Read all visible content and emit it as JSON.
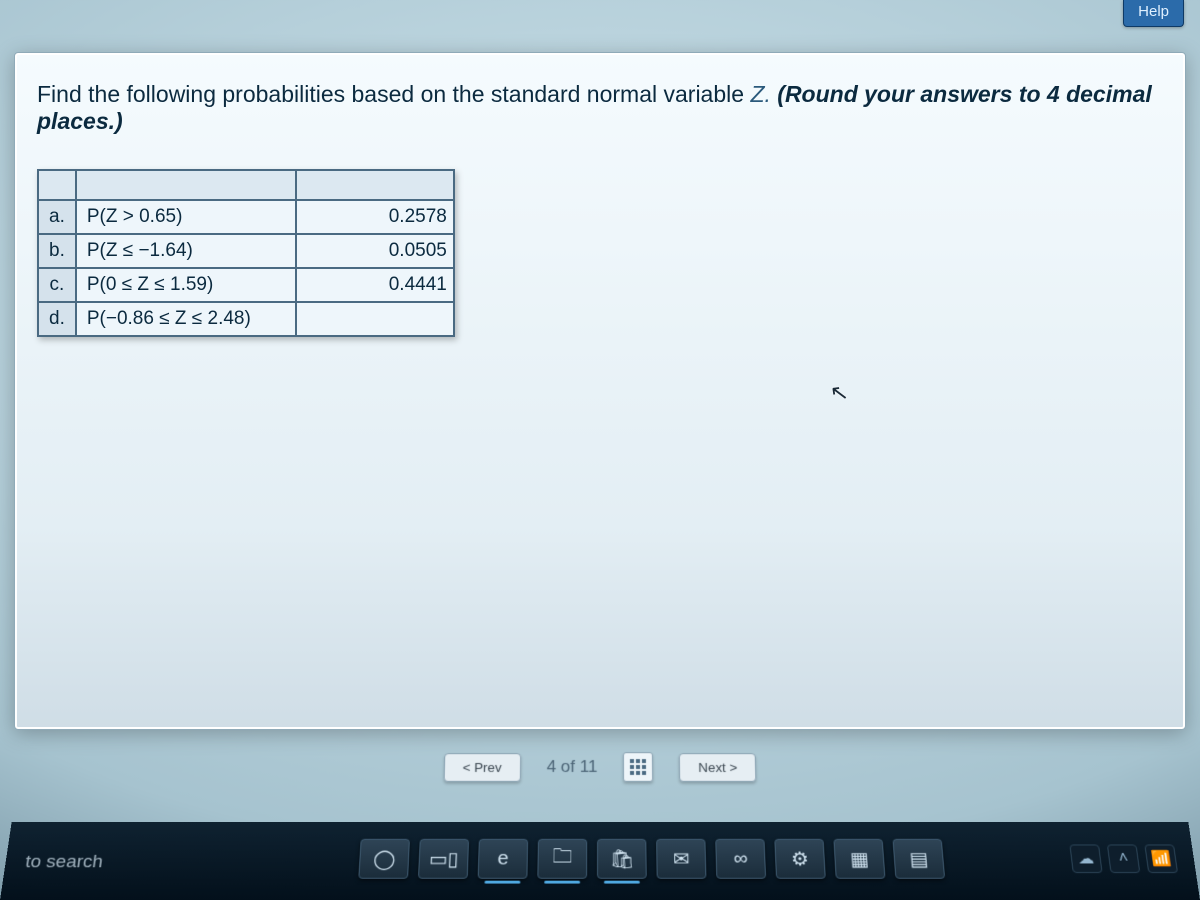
{
  "help_label": "Help",
  "prompt": {
    "lead": "Find the following probabilities based on the standard normal variable ",
    "var": "Z.",
    "hint": "(Round your answers to 4 decimal places.)"
  },
  "table": {
    "rows": [
      {
        "letter": "a.",
        "desc": "P(Z > 0.65)",
        "answer": "0.2578"
      },
      {
        "letter": "b.",
        "desc": "P(Z ≤ −1.64)",
        "answer": "0.0505"
      },
      {
        "letter": "c.",
        "desc": "P(0 ≤ Z ≤ 1.59)",
        "answer": "0.4441"
      },
      {
        "letter": "d.",
        "desc": "P(−0.86 ≤ Z ≤ 2.48)",
        "answer": ""
      }
    ]
  },
  "pager": {
    "prev": "<  Prev",
    "progress": "4 of 11",
    "next": "Next  >"
  },
  "taskbar": {
    "search_hint": "to search",
    "icons": [
      {
        "name": "cortana-icon",
        "glyph": "◯",
        "active": false
      },
      {
        "name": "taskview-icon",
        "glyph": "▭▯",
        "active": false
      },
      {
        "name": "edge-icon",
        "glyph": "e",
        "active": true
      },
      {
        "name": "explorer-icon",
        "glyph": "🗀",
        "active": true
      },
      {
        "name": "store-icon",
        "glyph": "🛍",
        "active": true
      },
      {
        "name": "mail-icon",
        "glyph": "✉",
        "active": false
      },
      {
        "name": "link-icon",
        "glyph": "∞",
        "active": false
      },
      {
        "name": "settings-icon",
        "glyph": "⚙",
        "active": false
      },
      {
        "name": "app-icon",
        "glyph": "▦",
        "active": false
      },
      {
        "name": "doc-icon",
        "glyph": "▤",
        "active": false
      }
    ],
    "tray": [
      {
        "name": "onedrive-icon",
        "glyph": "☁"
      },
      {
        "name": "chevron-up-icon",
        "glyph": "˄"
      },
      {
        "name": "wifi-icon",
        "glyph": "📶"
      }
    ]
  },
  "cursor_glyph": "↖"
}
